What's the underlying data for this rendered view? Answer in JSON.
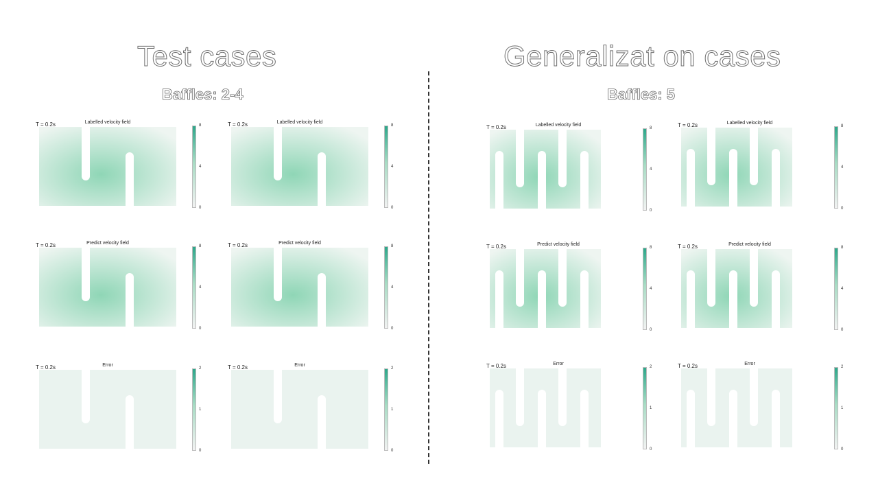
{
  "left_section": {
    "heading": "Test cases",
    "subheading": "Baffles: 2-4",
    "panels": [
      {
        "time": "T = 0.2s",
        "title": "Labelled velocity field",
        "scale": [
          "8",
          "4",
          "0"
        ]
      },
      {
        "time": "T = 0.2s",
        "title": "Labelled velocity field",
        "scale": [
          "8",
          "4",
          "0"
        ]
      },
      {
        "time": "T = 0.2s",
        "title": "Predict velocity field",
        "scale": [
          "8",
          "4",
          "0"
        ]
      },
      {
        "time": "T = 0.2s",
        "title": "Predict velocity field",
        "scale": [
          "8",
          "4",
          "0"
        ]
      },
      {
        "time": "T = 0.2s",
        "title": "Error",
        "scale": [
          "2",
          "1",
          "0"
        ]
      },
      {
        "time": "T = 0.2s",
        "title": "Error",
        "scale": [
          "2",
          "1",
          "0"
        ]
      }
    ]
  },
  "right_section": {
    "heading": "Generalizat on cases",
    "subheading": "Baffles: 5",
    "panels": [
      {
        "time": "T = 0.2s",
        "title": "Labelled velocity field",
        "scale": [
          "8",
          "4",
          "0"
        ]
      },
      {
        "time": "T = 0.2s",
        "title": "Labelled velocity field",
        "scale": [
          "8",
          "4",
          "0"
        ]
      },
      {
        "time": "T = 0.2s",
        "title": "Predict velocity field",
        "scale": [
          "8",
          "4",
          "0"
        ]
      },
      {
        "time": "T = 0.2s",
        "title": "Predict velocity field",
        "scale": [
          "8",
          "4",
          "0"
        ]
      },
      {
        "time": "T = 0.2s",
        "title": "Error",
        "scale": [
          "2",
          "1",
          "0"
        ]
      },
      {
        "time": "T = 0.2s",
        "title": "Error",
        "scale": [
          "2",
          "1",
          "0"
        ]
      }
    ]
  },
  "colors": {
    "colorbar_top": "#2ca78a",
    "colorbar_mid": "#a7dcc4",
    "colorbar_bottom": "#f2f2f2",
    "field_strong": "#8fd6b6",
    "field_weak": "#eef5f1",
    "error_field": "#eaf3ef"
  }
}
